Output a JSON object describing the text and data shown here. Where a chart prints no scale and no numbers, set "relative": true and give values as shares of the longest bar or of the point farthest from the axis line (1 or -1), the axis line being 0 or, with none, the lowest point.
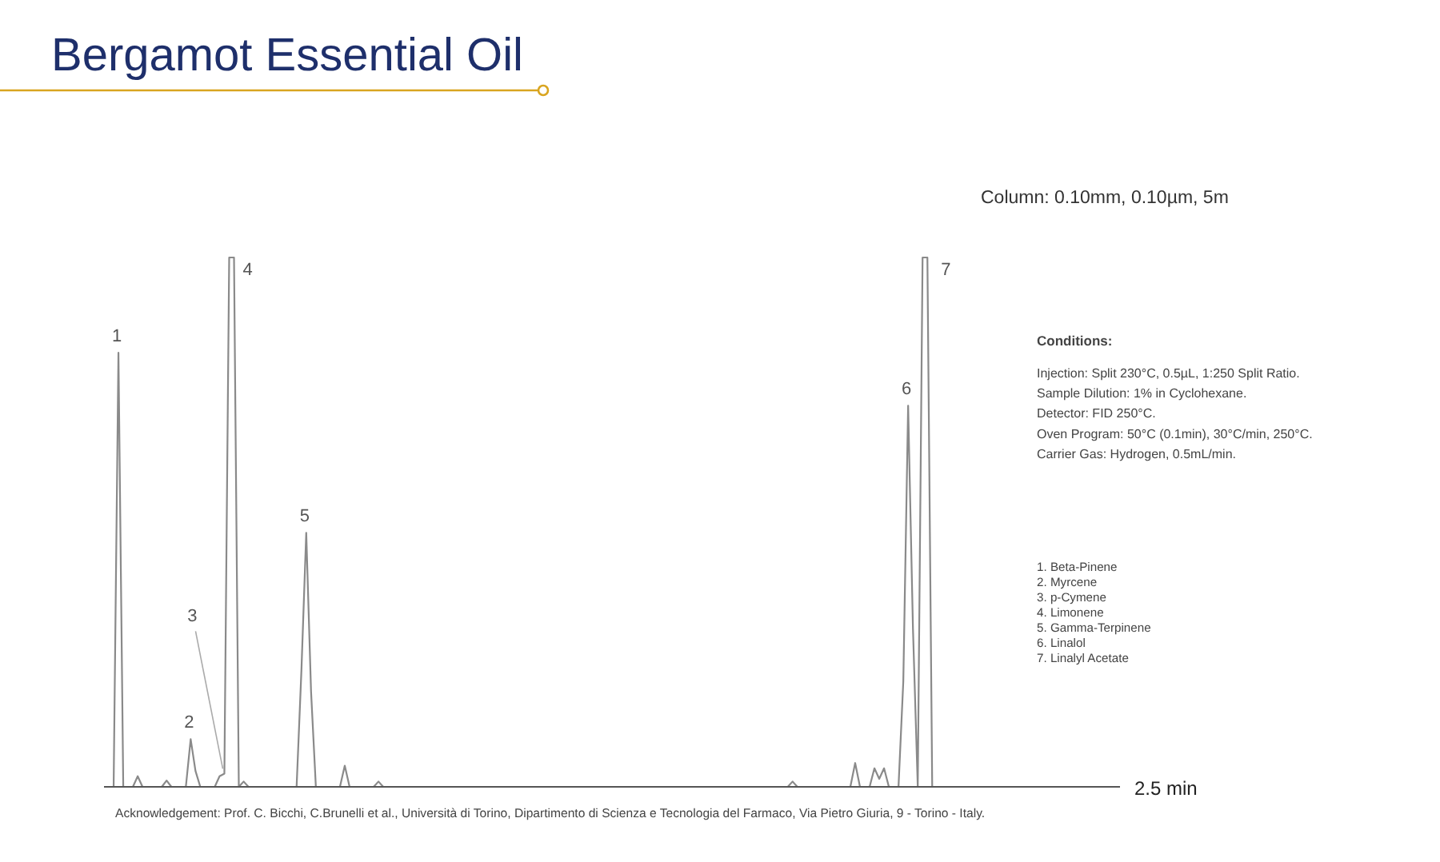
{
  "chart_data": {
    "type": "line",
    "title": "Bergamot Essential Oil",
    "subtitle": "Column: 0.10mm, 0.10µm, 5m",
    "relative": true,
    "categories": [
      null,
      null,
      null,
      null,
      null,
      null,
      null,
      null,
      null,
      null,
      null,
      null,
      null,
      null,
      null,
      null,
      null,
      null,
      null,
      null,
      null,
      null,
      null,
      null,
      null,
      null,
      null,
      null,
      null,
      null,
      null,
      null,
      null,
      null,
      null,
      null,
      null,
      null,
      null,
      null,
      null,
      null,
      null,
      null,
      null,
      null,
      null,
      null,
      null,
      null,
      null,
      null,
      null,
      null,
      null,
      null,
      null,
      null,
      null,
      null,
      null,
      null,
      null,
      null,
      null,
      null,
      null,
      null,
      null,
      null,
      null,
      null,
      null,
      null,
      null,
      null,
      null,
      null,
      null,
      null,
      null,
      null,
      null,
      null,
      null,
      null,
      null,
      null,
      null,
      null,
      null,
      null,
      null,
      null,
      null,
      null,
      null,
      null,
      null,
      null,
      null,
      null,
      null,
      null,
      null,
      null,
      null,
      null,
      null,
      null,
      null,
      null,
      null,
      null,
      null,
      null,
      null,
      null,
      null,
      null,
      null,
      null,
      null,
      null,
      null,
      null,
      null,
      null,
      null,
      null,
      null,
      null,
      null,
      null,
      null,
      null,
      null,
      null,
      null,
      null,
      null,
      null,
      null,
      null,
      null,
      null,
      null,
      null,
      null,
      null,
      null,
      null,
      null,
      null,
      null,
      null,
      null,
      null,
      null,
      null,
      null,
      null,
      null,
      null,
      null,
      null,
      null,
      null,
      null,
      null,
      null,
      null,
      null,
      null,
      null,
      null,
      null,
      null,
      null,
      null,
      null,
      null,
      null,
      null,
      null,
      null,
      null,
      null,
      null,
      null,
      null,
      null,
      null,
      null,
      null,
      null,
      null,
      null,
      null,
      null,
      null,
      null,
      null,
      null,
      null,
      null,
      null,
      null,
      null,
      null,
      null,
      null
    ],
    "series": [
      {
        "color": "#8a8a8a",
        "values": [
          0,
          0,
          0,
          0.82,
          0,
          0,
          0,
          0.02,
          0,
          0,
          0,
          0,
          0,
          0.012,
          0,
          0,
          0,
          0,
          0.09,
          0.03,
          0,
          0,
          0,
          0,
          0.02,
          0.025,
          1,
          1,
          0,
          0.01,
          0,
          0,
          0,
          0,
          0,
          0,
          0,
          0,
          0,
          0,
          0,
          0.22,
          0.48,
          0.18,
          0,
          0,
          0,
          0,
          0,
          0,
          0.04,
          0,
          0,
          0,
          0,
          0,
          0,
          0.01,
          0,
          0,
          0,
          0,
          0,
          0,
          0,
          0,
          0,
          0,
          0,
          0,
          0,
          0,
          0,
          0,
          0,
          0,
          0,
          0,
          0,
          0,
          0,
          0,
          0,
          0,
          0,
          0,
          0,
          0,
          0,
          0,
          0,
          0,
          0,
          0,
          0,
          0,
          0,
          0,
          0,
          0,
          0,
          0,
          0,
          0,
          0,
          0,
          0,
          0,
          0,
          0,
          0,
          0,
          0,
          0,
          0,
          0,
          0,
          0,
          0,
          0,
          0,
          0,
          0,
          0,
          0,
          0,
          0,
          0,
          0,
          0,
          0,
          0,
          0,
          0,
          0,
          0,
          0,
          0,
          0,
          0,
          0,
          0,
          0,
          0.01,
          0,
          0,
          0,
          0,
          0,
          0,
          0,
          0,
          0,
          0,
          0,
          0,
          0.045,
          0,
          0,
          0,
          0.035,
          0.015,
          0.035,
          0,
          0,
          0,
          0.2,
          0.72,
          0.3,
          0,
          1,
          1,
          0,
          0,
          0,
          0,
          0,
          0,
          0,
          0,
          0,
          0,
          0,
          0,
          0,
          0,
          0,
          0,
          0,
          0,
          0,
          0,
          0,
          0,
          0,
          0,
          0,
          0,
          0,
          0,
          0,
          0,
          0,
          0,
          0,
          0,
          0,
          0,
          0,
          0,
          0,
          0
        ]
      }
    ],
    "annotations": [
      "Conditions:",
      "Injection: Split 230°C, 0.5µL, 1:250 Split Ratio.",
      "Sample Dilution: 1% in Cyclohexane.",
      "Detector: FID 250°C.",
      "Oven Program: 50°C (0.1min), 30°C/min, 250°C.",
      "Carrier Gas: Hydrogen, 0.5mL/min.",
      "1. Beta-Pinene",
      "2. Myrcene",
      "3. p-Cymene",
      "4. Limonene",
      "5. Gamma-Terpinene",
      "6. Linalol",
      "7. Linalyl Acetate",
      "2.5 min",
      "Acknowledgement: Prof. C. Bicchi, C.Brunelli et al., Università di Torino, Dipartimento di Scienza e Tecnologia del Farmaco, Via Pietro Giuria, 9 - Torino - Italy.",
      "1",
      "2",
      "3",
      "4",
      "5",
      "6",
      "7"
    ]
  }
}
